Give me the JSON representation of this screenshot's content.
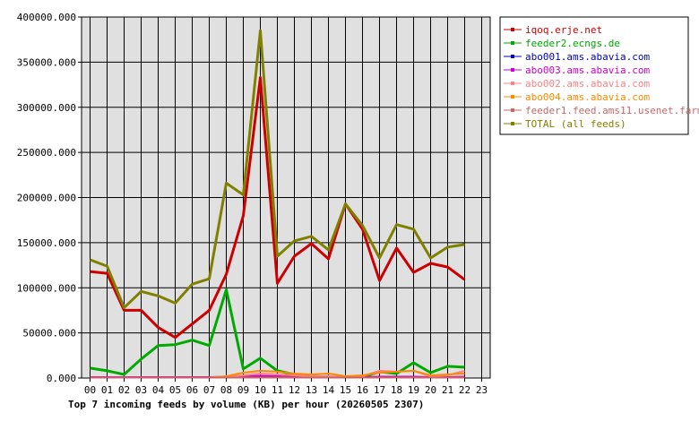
{
  "caption": "Top 7 incoming feeds by volume (KB) per hour (20260505 2307)",
  "chart_data": {
    "type": "line",
    "title": "Top 7 incoming feeds by volume (KB) per hour (20260505 2307)",
    "xlabel": "",
    "ylabel": "",
    "categories": [
      "00",
      "01",
      "02",
      "03",
      "04",
      "05",
      "06",
      "07",
      "08",
      "09",
      "10",
      "11",
      "12",
      "13",
      "14",
      "15",
      "16",
      "17",
      "18",
      "19",
      "20",
      "21",
      "22",
      "23"
    ],
    "ylim": [
      0,
      400000
    ],
    "y_ticks": [
      "0.000",
      "50000.000",
      "100000.000",
      "150000.000",
      "200000.000",
      "250000.000",
      "300000.000",
      "350000.000",
      "400000.000"
    ],
    "grid": true,
    "legend_position": "right",
    "series": [
      {
        "name": "iqoq.erje.net",
        "color": "#cc0000",
        "values": [
          118000,
          116000,
          75000,
          75000,
          56000,
          45000,
          60000,
          75000,
          115000,
          180000,
          333000,
          105000,
          135000,
          149000,
          132000,
          193000,
          165000,
          108000,
          144000,
          117000,
          127000,
          123000,
          109000,
          null
        ]
      },
      {
        "name": "feeder2.ecngs.de",
        "color": "#00aa00",
        "values": [
          11000,
          8000,
          4000,
          21000,
          36000,
          37000,
          42000,
          36000,
          98000,
          10000,
          22000,
          8000,
          4000,
          2000,
          1000,
          1000,
          1000,
          7000,
          5000,
          17000,
          6000,
          13000,
          12000,
          null
        ]
      },
      {
        "name": "abo001.ams.abavia.com",
        "color": "#0000cc",
        "values": [
          500,
          500,
          500,
          500,
          500,
          500,
          500,
          500,
          500,
          500,
          500,
          500,
          500,
          500,
          500,
          500,
          500,
          500,
          500,
          500,
          500,
          500,
          500,
          null
        ]
      },
      {
        "name": "abo003.ams.abavia.com",
        "color": "#cc00cc",
        "values": [
          1000,
          1000,
          1000,
          1000,
          1000,
          1000,
          1000,
          1000,
          1500,
          2000,
          2500,
          2000,
          1500,
          1500,
          1000,
          1000,
          1000,
          1500,
          1500,
          1500,
          1000,
          1000,
          1500,
          null
        ]
      },
      {
        "name": "abo002.ams.abavia.com",
        "color": "#ff8080",
        "values": [
          500,
          500,
          500,
          500,
          500,
          500,
          500,
          500,
          1500,
          3000,
          5000,
          4000,
          3000,
          2000,
          2000,
          1000,
          2000,
          8000,
          7000,
          8000,
          2000,
          3000,
          8000,
          null
        ]
      },
      {
        "name": "abo004.ams.abavia.com",
        "color": "#ff8800",
        "values": [
          500,
          500,
          500,
          500,
          500,
          500,
          500,
          500,
          2000,
          6000,
          8000,
          7000,
          5000,
          4000,
          5000,
          2000,
          3000,
          6000,
          7000,
          8000,
          3000,
          4000,
          5000,
          null
        ]
      },
      {
        "name": "feeder1.feed.ams11.usenet.farm",
        "color": "#cc6666",
        "values": [
          500,
          500,
          500,
          500,
          500,
          500,
          500,
          500,
          500,
          500,
          500,
          500,
          500,
          500,
          500,
          500,
          500,
          500,
          500,
          500,
          500,
          500,
          500,
          null
        ]
      },
      {
        "name": "TOTAL (all feeds)",
        "color": "#808000",
        "values": [
          131000,
          124000,
          78000,
          96000,
          91000,
          83000,
          104000,
          110000,
          216000,
          203000,
          385000,
          135000,
          152000,
          157000,
          142000,
          193000,
          169000,
          133000,
          170000,
          165000,
          133000,
          145000,
          148000,
          null
        ]
      }
    ]
  }
}
